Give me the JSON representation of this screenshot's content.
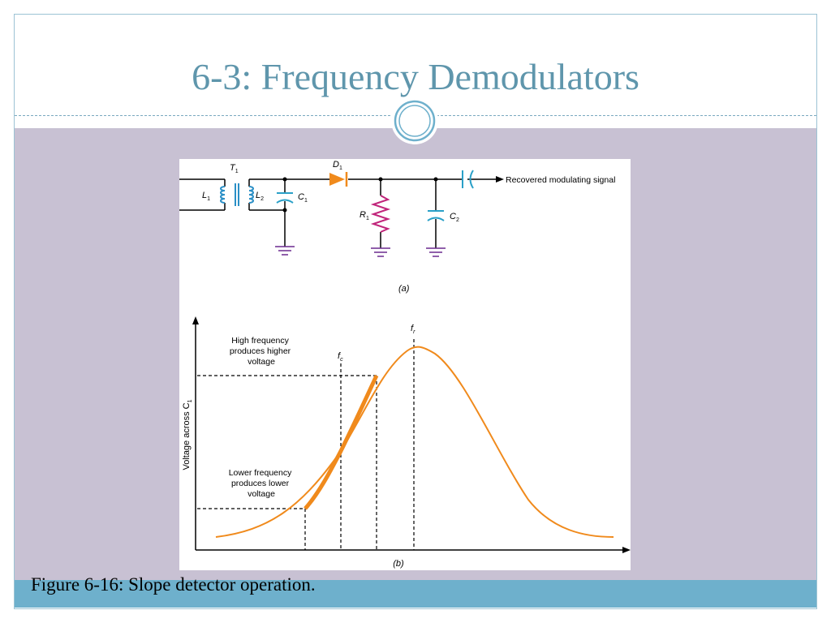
{
  "slide": {
    "title": "6-3: Frequency Demodulators",
    "caption": "Figure 6-16: Slope detector operation."
  },
  "colors": {
    "title": "#5f96ac",
    "content_bg": "#c8c1d3",
    "footer_band": "#6eb0cc",
    "inductor": "#2a8fc6",
    "capacitor": "#2aa0c8",
    "resistor": "#c0247a",
    "ground": "#6b2a8f",
    "diode": "#f08a1c",
    "curve": "#f08a1c"
  },
  "circuit": {
    "transformer_label": "T",
    "transformer_sub": "1",
    "primary_label": "L",
    "primary_sub": "1",
    "secondary_label": "L",
    "secondary_sub": "2",
    "cap1_label": "C",
    "cap1_sub": "1",
    "diode_label": "D",
    "diode_sub": "1",
    "resistor_label": "R",
    "resistor_sub": "1",
    "cap2_label": "C",
    "cap2_sub": "2",
    "output_label": "Recovered modulating signal",
    "part_label": "(a)"
  },
  "graph": {
    "ylabel": "Voltage across C",
    "ylabel_sub": "1",
    "fr_label": "f",
    "fr_sub": "r",
    "fc_label": "f",
    "fc_sub": "c",
    "high_annotation": [
      "High frequency",
      "produces higher",
      "voltage"
    ],
    "low_annotation": [
      "Lower frequency",
      "produces lower",
      "voltage"
    ],
    "part_label": "(b)"
  }
}
